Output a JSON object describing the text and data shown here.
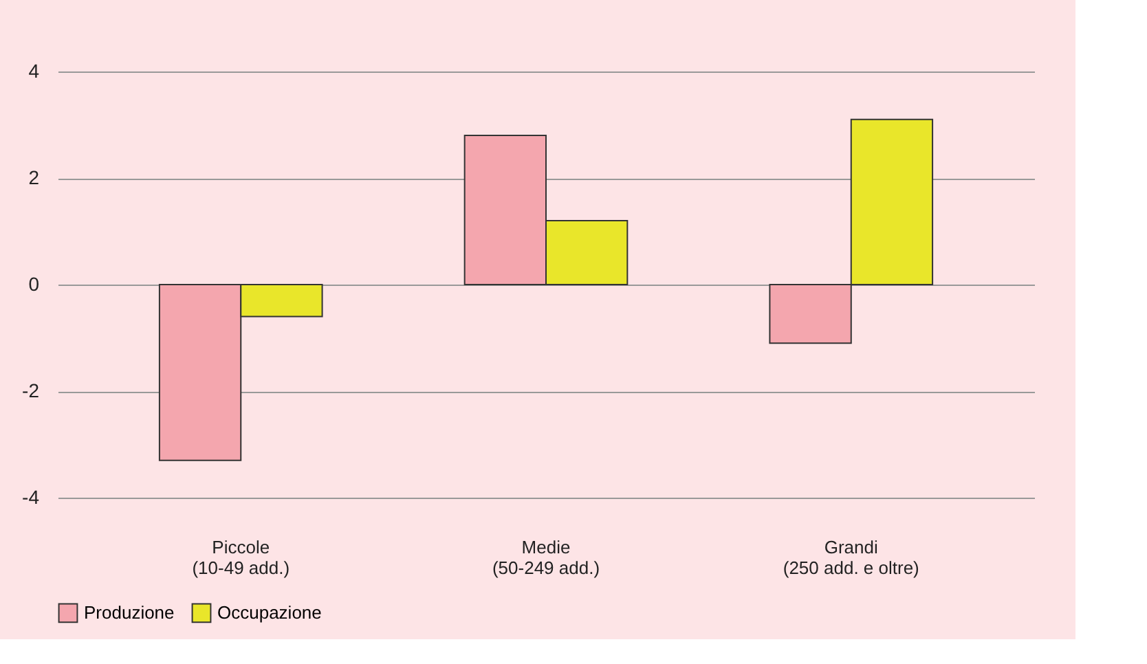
{
  "chart_data": {
    "type": "bar",
    "categories": [
      "Piccole\n(10-49 add.)",
      "Medie\n(50-249 add.)",
      "Grandi\n(250 add. e oltre)"
    ],
    "series": [
      {
        "name": "Produzione",
        "color": "#f4a6ae",
        "values": [
          -3.3,
          2.8,
          -1.1
        ]
      },
      {
        "name": "Occupazione",
        "color": "#e9e62a",
        "values": [
          -0.6,
          1.2,
          3.1
        ]
      }
    ],
    "ylim": [
      -4,
      4
    ],
    "yticks": [
      -4,
      -2,
      0,
      2,
      4
    ],
    "grid": "y",
    "legend": "bottom"
  }
}
